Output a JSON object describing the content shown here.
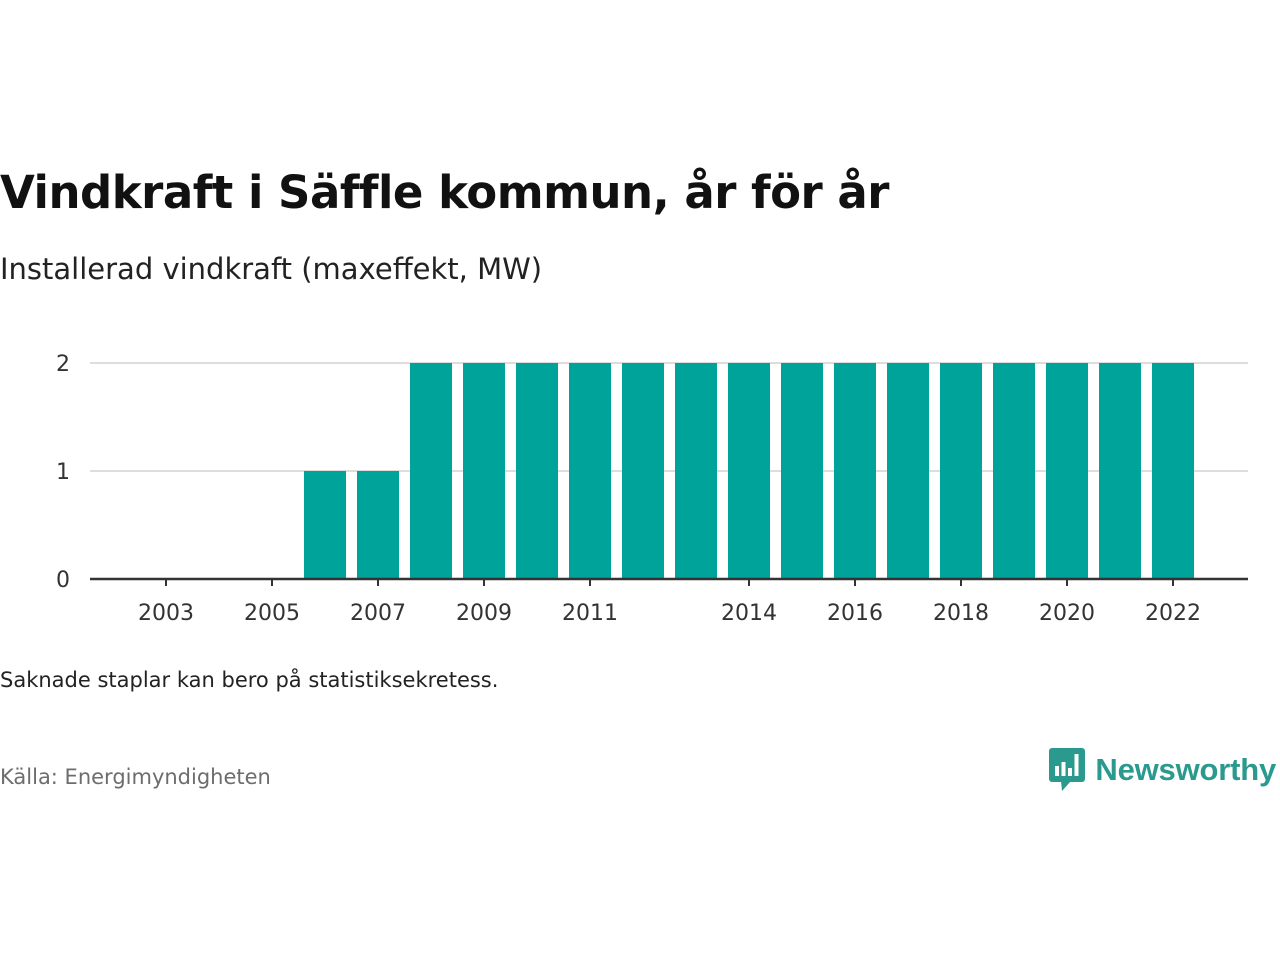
{
  "title": "Vindkraft i Säffle kommun, år för år",
  "subtitle": "Installerad vindkraft (maxeffekt, MW)",
  "note": "Saknade staplar kan bero på statistiksekretess.",
  "source": "Källa: Energimyndigheten",
  "brand": {
    "name": "Newsworthy",
    "icon": "newsworthy-logo-icon",
    "color": "#2b9a8e"
  },
  "colors": {
    "bar": "#00a39a",
    "grid": "#dddddd",
    "axis": "#333333"
  },
  "chart_data": {
    "type": "bar",
    "title": "Vindkraft i Säffle kommun, år för år",
    "subtitle": "Installerad vindkraft (maxeffekt, MW)",
    "xlabel": "",
    "ylabel": "",
    "x": [
      2003,
      2004,
      2005,
      2006,
      2007,
      2008,
      2009,
      2010,
      2011,
      2012,
      2013,
      2014,
      2015,
      2016,
      2017,
      2018,
      2019,
      2020,
      2021,
      2022
    ],
    "values": [
      0,
      0,
      0,
      1,
      1,
      2,
      2,
      2,
      2,
      2,
      2,
      2,
      2,
      2,
      2,
      2,
      2,
      2,
      2,
      2
    ],
    "x_tick_labels": [
      "2003",
      "2005",
      "2007",
      "2009",
      "2011",
      "2014",
      "2016",
      "2018",
      "2020",
      "2022"
    ],
    "y_ticks": [
      0,
      1,
      2
    ],
    "ylim": [
      0,
      2
    ],
    "grid": true
  }
}
